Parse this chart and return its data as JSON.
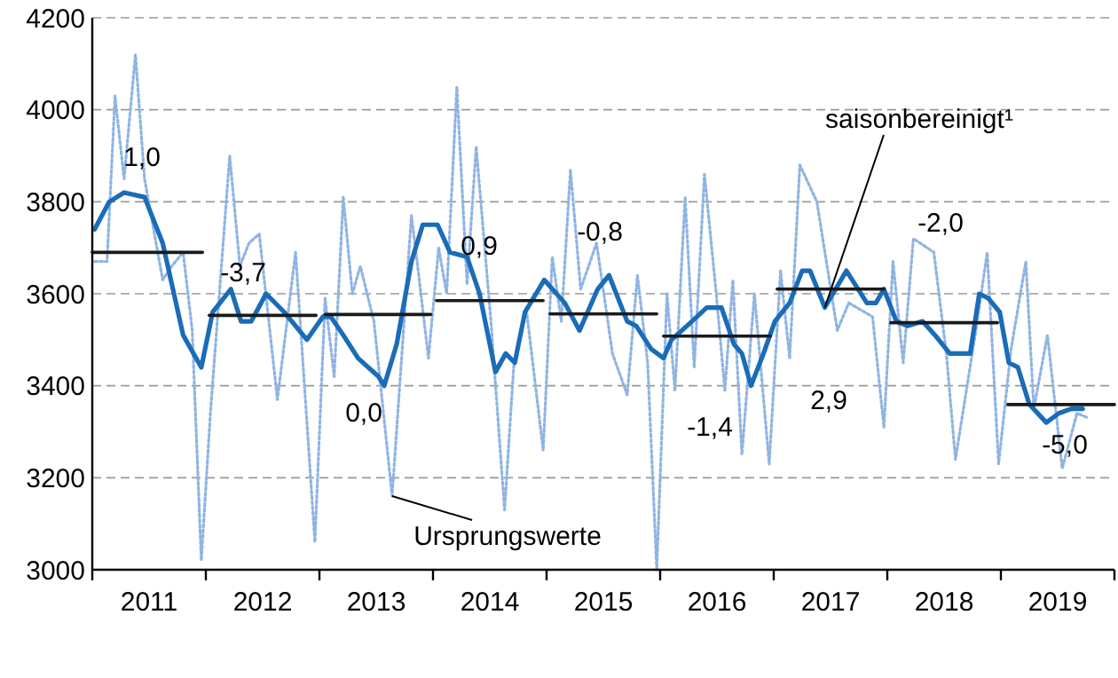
{
  "chart_data": {
    "type": "line",
    "xlim": [
      2011,
      2020
    ],
    "ylim": [
      3000,
      4200
    ],
    "xticks": [
      {
        "value": 2011,
        "label": null
      },
      {
        "value": 2011.5,
        "label": "2011"
      },
      {
        "value": 2012,
        "label": null
      },
      {
        "value": 2012.5,
        "label": "2012"
      },
      {
        "value": 2013,
        "label": null
      },
      {
        "value": 2013.5,
        "label": "2013"
      },
      {
        "value": 2014,
        "label": null
      },
      {
        "value": 2014.5,
        "label": "2014"
      },
      {
        "value": 2015,
        "label": null
      },
      {
        "value": 2015.5,
        "label": "2015"
      },
      {
        "value": 2016,
        "label": null
      },
      {
        "value": 2016.5,
        "label": "2016"
      },
      {
        "value": 2017,
        "label": null
      },
      {
        "value": 2017.5,
        "label": "2017"
      },
      {
        "value": 2018,
        "label": null
      },
      {
        "value": 2018.5,
        "label": "2018"
      },
      {
        "value": 2019,
        "label": null
      },
      {
        "value": 2019.5,
        "label": "2019"
      },
      {
        "value": 2020,
        "label": null
      }
    ],
    "yticks": [
      3000,
      3200,
      3400,
      3600,
      3800,
      4000,
      4200
    ],
    "grid": "y",
    "series": [
      {
        "name": "Ursprungswerte",
        "color": "#8fb4e3",
        "line_style": "dotted",
        "x": [
          2011.02,
          2011.13,
          2011.2,
          2011.28,
          2011.38,
          2011.46,
          2011.62,
          2011.7,
          2011.8,
          2011.88,
          2011.96,
          2012.04,
          2012.21,
          2012.3,
          2012.38,
          2012.47,
          2012.63,
          2012.79,
          2012.96,
          2013.05,
          2013.13,
          2013.21,
          2013.29,
          2013.36,
          2013.48,
          2013.64,
          2013.81,
          2013.86,
          2013.96,
          2014.05,
          2014.12,
          2014.21,
          2014.3,
          2014.38,
          2014.51,
          2014.63,
          2014.71,
          2014.82,
          2014.97,
          2015.05,
          2015.13,
          2015.21,
          2015.3,
          2015.44,
          2015.58,
          2015.71,
          2015.8,
          2015.89,
          2015.97,
          2016.06,
          2016.13,
          2016.22,
          2016.3,
          2016.39,
          2016.49,
          2016.57,
          2016.64,
          2016.72,
          2016.83,
          2016.96,
          2017.06,
          2017.14,
          2017.23,
          2017.38,
          2017.56,
          2017.66,
          2017.87,
          2017.97,
          2018.05,
          2018.14,
          2018.23,
          2018.41,
          2018.52,
          2018.6,
          2018.78,
          2018.88,
          2018.98,
          2019.09,
          2019.22,
          2019.29,
          2019.41,
          2019.54,
          2019.67,
          2019.77
        ],
        "values": [
          3670,
          3670,
          4030,
          3850,
          4120,
          3850,
          3630,
          3660,
          3690,
          3520,
          3020,
          3340,
          3900,
          3660,
          3710,
          3730,
          3370,
          3690,
          3060,
          3590,
          3420,
          3810,
          3600,
          3660,
          3540,
          3160,
          3770,
          3670,
          3460,
          3700,
          3600,
          4050,
          3620,
          3920,
          3540,
          3130,
          3440,
          3570,
          3260,
          3680,
          3540,
          3870,
          3610,
          3710,
          3470,
          3380,
          3640,
          3450,
          3000,
          3600,
          3390,
          3810,
          3440,
          3860,
          3610,
          3390,
          3630,
          3250,
          3600,
          3230,
          3650,
          3460,
          3880,
          3800,
          3520,
          3580,
          3550,
          3310,
          3670,
          3450,
          3720,
          3690,
          3470,
          3240,
          3520,
          3690,
          3230,
          3480,
          3670,
          3350,
          3510,
          3220,
          3340,
          3330
        ]
      },
      {
        "name": "saisonbereinigt¹",
        "color": "#1a6cb8",
        "line_style": "solid",
        "x": [
          2011.02,
          2011.15,
          2011.28,
          2011.46,
          2011.62,
          2011.8,
          2011.96,
          2012.06,
          2012.22,
          2012.31,
          2012.4,
          2012.53,
          2012.69,
          2012.89,
          2013.03,
          2013.1,
          2013.21,
          2013.34,
          2013.52,
          2013.57,
          2013.68,
          2013.81,
          2013.91,
          2014.04,
          2014.15,
          2014.3,
          2014.41,
          2014.55,
          2014.64,
          2014.72,
          2014.81,
          2014.98,
          2015.16,
          2015.29,
          2015.45,
          2015.55,
          2015.71,
          2015.79,
          2015.92,
          2016.03,
          2016.1,
          2016.28,
          2016.41,
          2016.54,
          2016.65,
          2016.72,
          2016.8,
          2016.91,
          2017.01,
          2017.14,
          2017.25,
          2017.32,
          2017.45,
          2017.64,
          2017.82,
          2017.9,
          2017.97,
          2018.08,
          2018.18,
          2018.31,
          2018.42,
          2018.55,
          2018.63,
          2018.73,
          2018.81,
          2018.89,
          2018.99,
          2019.07,
          2019.15,
          2019.25,
          2019.4,
          2019.51,
          2019.62,
          2019.72
        ],
        "values": [
          3740,
          3800,
          3820,
          3810,
          3710,
          3510,
          3440,
          3560,
          3610,
          3540,
          3540,
          3600,
          3560,
          3500,
          3550,
          3550,
          3510,
          3460,
          3420,
          3400,
          3490,
          3670,
          3750,
          3750,
          3690,
          3680,
          3600,
          3430,
          3470,
          3450,
          3560,
          3630,
          3580,
          3520,
          3610,
          3640,
          3540,
          3530,
          3480,
          3460,
          3500,
          3540,
          3570,
          3570,
          3490,
          3470,
          3400,
          3470,
          3540,
          3580,
          3650,
          3650,
          3570,
          3650,
          3580,
          3580,
          3610,
          3540,
          3530,
          3540,
          3510,
          3470,
          3470,
          3470,
          3600,
          3590,
          3560,
          3450,
          3440,
          3360,
          3320,
          3340,
          3350,
          3350
        ]
      },
      {
        "color": "#1a1a1a",
        "line_style": "solid",
        "x": [
          2011,
          2011.97
        ],
        "values": [
          3690,
          3690
        ]
      },
      {
        "color": "#1a1a1a",
        "line_style": "solid",
        "x": [
          2012.03,
          2012.97
        ],
        "values": [
          3553,
          3553
        ]
      },
      {
        "color": "#1a1a1a",
        "line_style": "solid",
        "x": [
          2013.05,
          2013.98
        ],
        "values": [
          3555,
          3555
        ]
      },
      {
        "color": "#1a1a1a",
        "line_style": "solid",
        "x": [
          2014.03,
          2014.97
        ],
        "values": [
          3585,
          3585
        ]
      },
      {
        "color": "#1a1a1a",
        "line_style": "solid",
        "x": [
          2015.03,
          2015.97
        ],
        "values": [
          3556,
          3556
        ]
      },
      {
        "color": "#1a1a1a",
        "line_style": "solid",
        "x": [
          2016.03,
          2016.97
        ],
        "values": [
          3508,
          3508
        ]
      },
      {
        "color": "#1a1a1a",
        "line_style": "solid",
        "x": [
          2017.03,
          2017.97
        ],
        "values": [
          3610,
          3610
        ]
      },
      {
        "color": "#1a1a1a",
        "line_style": "solid",
        "x": [
          2018.03,
          2018.97
        ],
        "values": [
          3537,
          3537
        ]
      },
      {
        "color": "#1a1a1a",
        "line_style": "solid",
        "x": [
          2019.06,
          2020
        ],
        "values": [
          3359,
          3359
        ]
      }
    ],
    "annotations": [
      "1,0",
      "-3,7",
      "0,0",
      "0,9",
      "-0,8",
      "-1,4",
      "2,9",
      "-2,0",
      "-5,0"
    ]
  }
}
